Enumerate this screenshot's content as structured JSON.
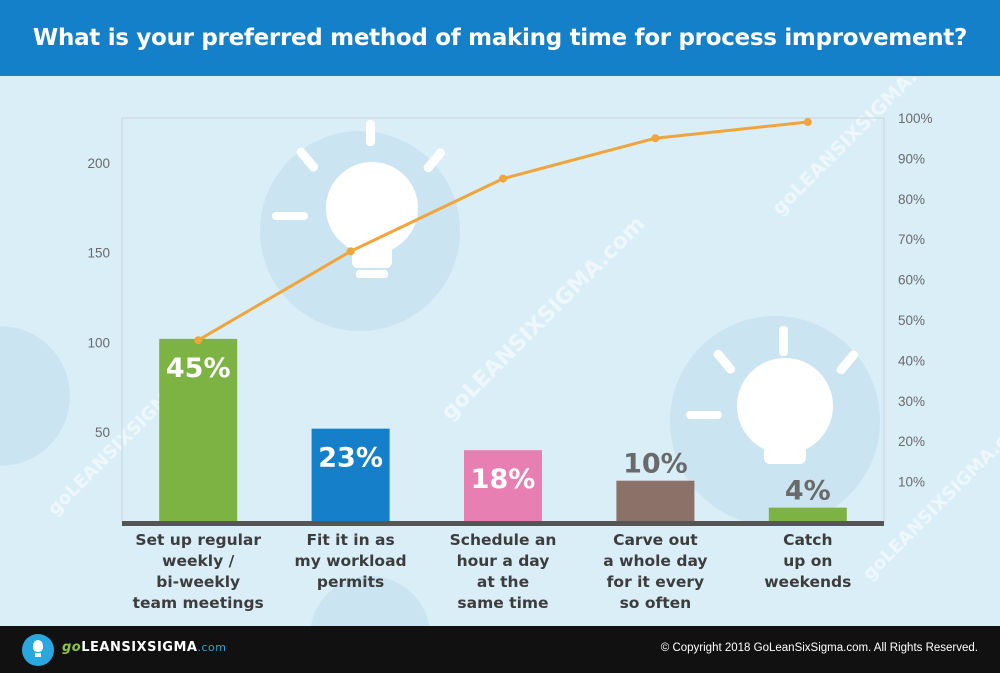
{
  "header": {
    "title": "What is your preferred method of making time for process improvement?"
  },
  "chart_data": {
    "type": "bar",
    "categories": [
      [
        "Set up regular",
        "weekly /",
        "bi-weekly",
        "team meetings"
      ],
      [
        "Fit it in as",
        "my workload",
        "permits"
      ],
      [
        "Schedule an",
        "hour a day",
        "at the",
        "same time"
      ],
      [
        "Carve out",
        "a whole day",
        "for it every",
        "so often"
      ],
      [
        "Catch",
        "up on",
        "weekends"
      ]
    ],
    "values": [
      102,
      52,
      40,
      23,
      8
    ],
    "percent_labels": [
      "45%",
      "23%",
      "18%",
      "10%",
      "4%"
    ],
    "cumulative_percent": [
      45,
      67,
      85,
      95,
      99
    ],
    "bar_colors": [
      "#7cb342",
      "#1580c9",
      "#e87fb3",
      "#8c7168",
      "#7cb342"
    ],
    "label_colors": [
      "#ffffff",
      "#ffffff",
      "#ffffff",
      "#6a6a6a",
      "#6a6a6a"
    ],
    "line_color": "#f0a43a",
    "ylim": [
      0,
      225
    ],
    "y_ticks": [
      50,
      100,
      150,
      200
    ],
    "y2lim": [
      0,
      100
    ],
    "y2_ticks": [
      "10%",
      "20%",
      "30%",
      "40%",
      "50%",
      "60%",
      "70%",
      "80%",
      "90%",
      "100%"
    ],
    "grid": false,
    "watermark": "goLEANSIXSIGMA.com"
  },
  "footer": {
    "brand_go": "go",
    "brand_main": "LEANSIXSIGMA",
    "brand_suffix": ".com",
    "copyright": "© Copyright 2018 GoLeanSixSigma.com. All Rights Reserved."
  }
}
